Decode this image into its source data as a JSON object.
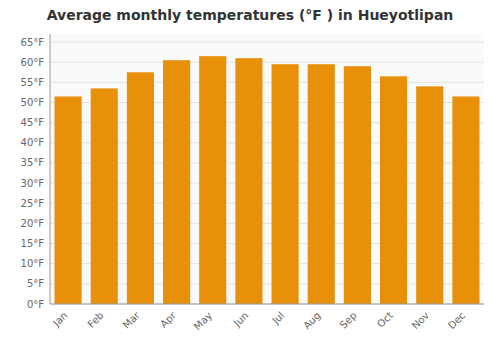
{
  "chart_data": {
    "type": "bar",
    "title": "Average monthly temperatures (°F ) in Hueyotlipan",
    "categories": [
      "Jan",
      "Feb",
      "Mar",
      "Apr",
      "May",
      "Jun",
      "Jul",
      "Aug",
      "Sep",
      "Oct",
      "Nov",
      "Dec"
    ],
    "values": [
      51.5,
      53.5,
      57.5,
      60.5,
      61.5,
      61.0,
      59.5,
      59.5,
      59.0,
      56.5,
      54.0,
      51.5
    ],
    "color": "#E8900A",
    "ylim": [
      0,
      67
    ],
    "yticks": [
      {
        "value": 0,
        "label": "0°F"
      },
      {
        "value": 5,
        "label": "5°F"
      },
      {
        "value": 10,
        "label": "10°F"
      },
      {
        "value": 15,
        "label": "15°F"
      },
      {
        "value": 20,
        "label": "20°F"
      },
      {
        "value": 25,
        "label": "25°F"
      },
      {
        "value": 30,
        "label": "30°F"
      },
      {
        "value": 35,
        "label": "35°F"
      },
      {
        "value": 40,
        "label": "40°F"
      },
      {
        "value": 45,
        "label": "45°F"
      },
      {
        "value": 50,
        "label": "50°F"
      },
      {
        "value": 55,
        "label": "55°F"
      },
      {
        "value": 60,
        "label": "60°F"
      },
      {
        "value": 65,
        "label": "65°F"
      }
    ],
    "grid": true
  }
}
